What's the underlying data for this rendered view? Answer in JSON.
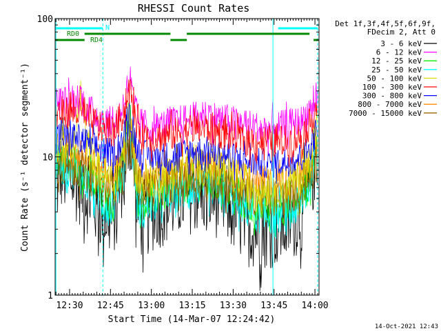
{
  "chart_data": {
    "type": "line",
    "title": "RHESSI Count Rates",
    "xlabel": "Start Time (14-Mar-07 12:24:42)",
    "ylabel": "Count Rate (s⁻¹ detector segment⁻¹)",
    "y_scale": "log",
    "ylim": [
      1,
      100
    ],
    "xlim_minutes_after_12_00": [
      24.7,
      121.5
    ],
    "x_tick_labels": [
      "12:30",
      "12:45",
      "13:00",
      "13:15",
      "13:30",
      "13:45",
      "14:00"
    ],
    "x_tick_minutes_after_12_00": [
      30,
      45,
      60,
      75,
      90,
      105,
      120
    ],
    "y_tick_labels": [
      "1",
      "10",
      "100"
    ],
    "y_tick_values": [
      1,
      10,
      100
    ],
    "grid": false,
    "legend_position": "right",
    "legend_header": [
      "Det 1f,3f,4f,5f,6f,9f,",
      "FDecim 2, Att 0"
    ],
    "series": [
      {
        "name": "3 - 6 keV",
        "color": "#000000",
        "x": [
          25,
          28,
          33,
          35,
          39,
          43,
          46,
          50,
          52,
          53,
          55,
          57,
          60,
          65,
          70,
          75,
          80,
          85,
          90,
          95,
          100,
          105,
          110,
          115,
          118,
          121
        ],
        "y": [
          8.5,
          7.5,
          6.5,
          6.0,
          4.6,
          3.8,
          3.5,
          8.0,
          15.0,
          10.0,
          4.0,
          3.5,
          4.0,
          4.5,
          5.0,
          5.5,
          5.5,
          5.0,
          4.0,
          3.2,
          3.0,
          3.1,
          3.3,
          4.0,
          5.5,
          11.0
        ]
      },
      {
        "name": "6 - 12 keV",
        "color": "#ff00ff",
        "x": [
          25,
          28,
          32,
          34,
          36,
          40,
          44,
          47,
          50,
          52,
          53,
          55,
          57,
          60,
          65,
          70,
          75,
          80,
          85,
          90,
          95,
          100,
          105,
          110,
          115,
          118,
          121
        ],
        "y": [
          25,
          25,
          25,
          28,
          22,
          20,
          18,
          17,
          25,
          36,
          28,
          18,
          17,
          16,
          17,
          18,
          19,
          20,
          19,
          18,
          17,
          16,
          16,
          17,
          18,
          22,
          27
        ]
      },
      {
        "name": "12 - 25 keV",
        "color": "#00ee00",
        "x": [
          25,
          28,
          32,
          35,
          38,
          43,
          46,
          50,
          52,
          53,
          55,
          57,
          60,
          65,
          70,
          75,
          80,
          85,
          90,
          95,
          100,
          105,
          110,
          115,
          118,
          121
        ],
        "y": [
          10.0,
          9.5,
          9.0,
          8.0,
          6.5,
          5.0,
          4.6,
          10.0,
          18.0,
          12.0,
          5.0,
          4.6,
          5.0,
          5.5,
          6.0,
          6.5,
          6.6,
          6.3,
          5.4,
          4.5,
          4.2,
          4.2,
          4.4,
          5.0,
          6.5,
          12.0
        ]
      },
      {
        "name": "25 - 50 keV",
        "color": "#00ffff",
        "x": [
          25,
          28,
          32,
          35,
          38,
          43,
          46,
          50,
          52,
          53,
          55,
          57,
          60,
          65,
          70,
          75,
          80,
          85,
          90,
          95,
          100,
          105,
          110,
          115,
          118,
          121
        ],
        "y": [
          9.0,
          8.5,
          8.0,
          7.0,
          5.8,
          4.5,
          4.2,
          9.0,
          17.0,
          11.0,
          4.5,
          4.2,
          4.5,
          5.0,
          5.5,
          6.0,
          6.1,
          5.8,
          5.0,
          4.2,
          3.8,
          3.8,
          4.0,
          4.6,
          6.0,
          11.5
        ]
      },
      {
        "name": "50 - 100 keV",
        "color": "#dddd00",
        "x": [
          25,
          28,
          32,
          34,
          36,
          40,
          44,
          47,
          50,
          52,
          53,
          55,
          57,
          60,
          65,
          70,
          75,
          80,
          85,
          90,
          95,
          100,
          105,
          110,
          115,
          118,
          121
        ],
        "y": [
          12.5,
          12.0,
          11.5,
          29.0,
          13.0,
          8.5,
          7.0,
          6.5,
          12.0,
          22.0,
          15.0,
          7.0,
          6.5,
          7.0,
          7.5,
          8.0,
          8.5,
          8.6,
          8.3,
          7.3,
          6.4,
          6.0,
          6.0,
          6.2,
          7.2,
          9.0,
          18.0
        ]
      },
      {
        "name": "100 - 300 keV",
        "color": "#ff0000",
        "x": [
          25,
          28,
          32,
          35,
          38,
          43,
          46,
          50,
          52,
          53,
          55,
          57,
          60,
          65,
          70,
          75,
          80,
          85,
          90,
          95,
          100,
          105,
          110,
          115,
          118,
          121
        ],
        "y": [
          21,
          21,
          21,
          20,
          18,
          16,
          15,
          21,
          32,
          24,
          16,
          15,
          14,
          14,
          15,
          16,
          16,
          15,
          14,
          13,
          13,
          13,
          13,
          14,
          17,
          24
        ]
      },
      {
        "name": "300 - 800 keV",
        "color": "#0000ff",
        "x": [
          25,
          28,
          32,
          35,
          38,
          43,
          46,
          50,
          52,
          53,
          55,
          57,
          60,
          65,
          70,
          75,
          80,
          85,
          90,
          95,
          100,
          105,
          110,
          115,
          118,
          121
        ],
        "y": [
          14.0,
          14.0,
          14.0,
          13.0,
          12.0,
          11.0,
          10.5,
          14.0,
          21.0,
          16.0,
          11.0,
          10.5,
          10.0,
          10.0,
          10.5,
          11.0,
          11.0,
          10.5,
          10.0,
          9.3,
          9.0,
          9.0,
          9.2,
          10.0,
          11.5,
          16.0
        ]
      },
      {
        "name": "800 - 7000 keV",
        "color": "#ff8800",
        "x": [
          25,
          28,
          32,
          35,
          38,
          43,
          46,
          50,
          52,
          53,
          55,
          57,
          60,
          65,
          70,
          75,
          80,
          85,
          90,
          95,
          100,
          105,
          110,
          115,
          118,
          121
        ],
        "y": [
          11.0,
          11.0,
          10.5,
          10.0,
          9.0,
          8.0,
          7.6,
          11.0,
          17.0,
          12.5,
          8.0,
          7.6,
          7.6,
          7.8,
          8.2,
          8.5,
          8.5,
          8.2,
          7.6,
          7.0,
          6.6,
          6.6,
          6.8,
          7.4,
          9.0,
          13.0
        ]
      },
      {
        "name": "7000 - 15000 keV",
        "color": "#996600",
        "x": [
          25,
          28,
          32,
          35,
          38,
          43,
          46,
          50,
          52,
          53,
          55,
          57,
          60,
          65,
          70,
          75,
          80,
          85,
          90,
          95,
          100,
          105,
          110,
          115,
          118,
          121
        ],
        "y": [
          8.8,
          8.6,
          8.2,
          7.8,
          7.0,
          6.2,
          5.9,
          8.6,
          13.5,
          10.0,
          6.2,
          5.9,
          6.0,
          6.2,
          6.5,
          6.8,
          6.9,
          6.6,
          6.0,
          5.4,
          5.0,
          5.0,
          5.2,
          5.8,
          7.2,
          10.5
        ]
      }
    ],
    "annotations": {
      "flag_lines": [
        {
          "label": "",
          "color": "#00ffff",
          "segments": [
            [
              24.7,
              42.2
            ],
            [
              106.5,
              121.0
            ]
          ],
          "level": 1
        },
        {
          "label": "N",
          "color": "#00ffff",
          "segments": [],
          "level": 1
        },
        {
          "label": "RD0",
          "color": "#008800",
          "segments": [
            [
              35.5,
              67.0
            ],
            [
              73.0,
              118.0
            ]
          ],
          "level": 2
        },
        {
          "label": "RD4",
          "color": "#008800",
          "segments": [
            [
              24.7,
              35.5
            ],
            [
              67.0,
              73.0
            ],
            [
              119.5,
              121.3
            ]
          ],
          "level": 3
        }
      ],
      "vertical_markers": [
        {
          "x": 25.0,
          "color": "#00ffff",
          "style": "solid"
        },
        {
          "x": 42.2,
          "color": "#00ffff",
          "style": "dashed"
        },
        {
          "x": 104.6,
          "color": "#00ffff",
          "style": "solid"
        },
        {
          "x": 121.0,
          "color": "#00ffff",
          "style": "dashed"
        }
      ]
    }
  },
  "timestamp": "14-Oct-2021 12:43"
}
